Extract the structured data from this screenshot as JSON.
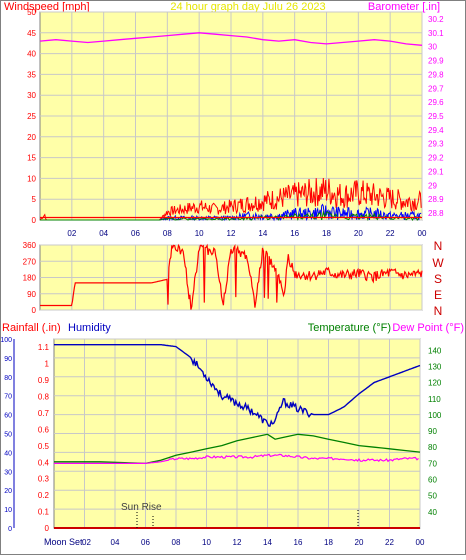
{
  "header": {
    "title": "24 hour graph day   Julu 26 2023",
    "left_label": "Windspeed [mph]",
    "right_label": "Barometer [.in]"
  },
  "bottom_header": {
    "rainfall_label": "Rainfall (.in)",
    "humidity_label": "Humidity",
    "temperature_label": "Temperature (°F)",
    "dewpoint_label": "Dew Point (°F)"
  },
  "annotations": {
    "sun_rise": "Sun Rise",
    "moon_set": "Moon Set"
  },
  "compass": [
    "N",
    "W",
    "S",
    "E",
    "N"
  ],
  "colors": {
    "plot_bg": "#ffffa8",
    "grid": "#c8c8c8",
    "wind": "#ff0000",
    "gust": "#0000ff",
    "wind_green": "#008000",
    "barometer": "#ff00ff",
    "humidity": "#0000c0",
    "temperature": "#008000",
    "dewpoint": "#ff00ff",
    "rainfall": "#cc0000",
    "left_axis_text": "#ff0000",
    "title_text": "#e6e600"
  },
  "chart_data": [
    {
      "type": "line",
      "name": "wind-barometer",
      "x_ticks": [
        "02",
        "04",
        "06",
        "08",
        "10",
        "12",
        "14",
        "16",
        "18",
        "20",
        "22",
        "00"
      ],
      "ylim": [
        0,
        50
      ],
      "y_ticks": [
        0,
        5,
        10,
        15,
        20,
        25,
        30,
        35,
        40,
        45,
        50
      ],
      "y2lim": [
        28.75,
        30.25
      ],
      "y2_ticks": [
        "28.8",
        "28.9",
        "29",
        "29.1",
        "29.2",
        "29.3",
        "29.4",
        "29.5",
        "29.6",
        "29.7",
        "29.8",
        "29.9",
        "30",
        "30.1",
        "30.2"
      ],
      "barometer": [
        [
          0,
          30.04
        ],
        [
          1,
          30.05
        ],
        [
          2,
          30.04
        ],
        [
          3,
          30.03
        ],
        [
          4,
          30.04
        ],
        [
          5,
          30.05
        ],
        [
          6,
          30.06
        ],
        [
          7,
          30.07
        ],
        [
          8,
          30.08
        ],
        [
          9,
          30.09
        ],
        [
          10,
          30.1
        ],
        [
          11,
          30.09
        ],
        [
          12,
          30.08
        ],
        [
          13,
          30.07
        ],
        [
          14,
          30.05
        ],
        [
          15,
          30.04
        ],
        [
          16,
          30.05
        ],
        [
          17,
          30.03
        ],
        [
          18,
          30.02
        ],
        [
          19,
          30.03
        ],
        [
          20,
          30.04
        ],
        [
          21,
          30.05
        ],
        [
          22,
          30.04
        ],
        [
          23,
          30.02
        ],
        [
          24,
          30.01
        ]
      ],
      "wind_max": [
        [
          0,
          0
        ],
        [
          0.3,
          2
        ],
        [
          0.4,
          0
        ],
        [
          7.5,
          0
        ],
        [
          8,
          3
        ],
        [
          9,
          4
        ],
        [
          10,
          5
        ],
        [
          11,
          4
        ],
        [
          12,
          5
        ],
        [
          13,
          6
        ],
        [
          14,
          7
        ],
        [
          15,
          8
        ],
        [
          16,
          9
        ],
        [
          17,
          10
        ],
        [
          18,
          11
        ],
        [
          19,
          9
        ],
        [
          20,
          10
        ],
        [
          21,
          9
        ],
        [
          22,
          8
        ],
        [
          23,
          7
        ],
        [
          24,
          7
        ]
      ],
      "gust_max": [
        [
          0,
          0
        ],
        [
          7.5,
          0
        ],
        [
          8,
          1
        ],
        [
          9,
          1
        ],
        [
          10,
          1
        ],
        [
          11,
          1
        ],
        [
          12,
          1
        ],
        [
          13,
          2
        ],
        [
          14,
          2
        ],
        [
          15,
          2
        ],
        [
          16,
          3
        ],
        [
          17,
          3
        ],
        [
          18,
          4
        ],
        [
          19,
          3
        ],
        [
          20,
          3
        ],
        [
          21,
          3
        ],
        [
          22,
          2
        ],
        [
          23,
          2
        ],
        [
          24,
          2
        ]
      ]
    },
    {
      "type": "line",
      "name": "wind-direction",
      "ylim": [
        0,
        360
      ],
      "y_ticks": [
        0,
        90,
        180,
        270,
        360
      ],
      "direction": [
        [
          0,
          25
        ],
        [
          2,
          25
        ],
        [
          2.2,
          150
        ],
        [
          7,
          150
        ],
        [
          7.5,
          160
        ],
        [
          8,
          170
        ],
        [
          8.3,
          360
        ],
        [
          9,
          320
        ],
        [
          9.5,
          10
        ],
        [
          10,
          340
        ],
        [
          11,
          330
        ],
        [
          11.5,
          20
        ],
        [
          12,
          340
        ],
        [
          13,
          300
        ],
        [
          13.5,
          40
        ],
        [
          14,
          330
        ],
        [
          15,
          200
        ],
        [
          15.3,
          60
        ],
        [
          15.6,
          300
        ],
        [
          16,
          200
        ],
        [
          17,
          190
        ],
        [
          18,
          210
        ],
        [
          19,
          190
        ],
        [
          20,
          200
        ],
        [
          21,
          185
        ],
        [
          22,
          205
        ],
        [
          23,
          190
        ],
        [
          24,
          200
        ]
      ]
    },
    {
      "type": "line",
      "name": "humidity-temperature",
      "ylim": [
        0,
        100
      ],
      "y_ticks": [
        0,
        10,
        20,
        30,
        40,
        50,
        60,
        70,
        80,
        90,
        100
      ],
      "rain_ylim": [
        0,
        1.15
      ],
      "rain_ticks": [
        "0",
        "0.1",
        "0.2",
        "0.3",
        "0.4",
        "0.5",
        "0.6",
        "0.7",
        "0.8",
        "0.9",
        "1",
        "1.1"
      ],
      "temp_ylim": [
        30,
        147
      ],
      "temp_ticks": [
        40,
        50,
        60,
        70,
        80,
        90,
        100,
        110,
        120,
        130,
        140
      ],
      "humidity": [
        [
          0,
          97
        ],
        [
          4,
          97
        ],
        [
          7,
          97
        ],
        [
          8,
          96
        ],
        [
          9,
          90
        ],
        [
          10,
          80
        ],
        [
          11,
          70
        ],
        [
          12,
          66
        ],
        [
          13,
          62
        ],
        [
          14,
          55
        ],
        [
          14.5,
          56
        ],
        [
          15,
          67
        ],
        [
          16,
          63
        ],
        [
          17,
          60
        ],
        [
          18,
          60
        ],
        [
          19,
          64
        ],
        [
          20,
          71
        ],
        [
          21,
          77
        ],
        [
          22,
          80
        ],
        [
          23,
          83
        ],
        [
          24,
          86
        ]
      ],
      "temperature": [
        [
          0,
          71
        ],
        [
          3,
          71
        ],
        [
          6,
          70
        ],
        [
          7,
          72
        ],
        [
          8,
          75
        ],
        [
          9,
          77
        ],
        [
          10,
          79
        ],
        [
          11,
          81
        ],
        [
          12,
          84
        ],
        [
          13,
          86
        ],
        [
          14,
          88
        ],
        [
          14.5,
          85
        ],
        [
          15,
          86
        ],
        [
          16,
          88
        ],
        [
          17,
          87
        ],
        [
          18,
          85
        ],
        [
          19,
          83
        ],
        [
          20,
          81
        ],
        [
          21,
          80
        ],
        [
          22,
          79
        ],
        [
          23,
          78
        ],
        [
          24,
          77
        ]
      ],
      "dewpoint": [
        [
          0,
          70
        ],
        [
          3,
          70
        ],
        [
          6,
          70
        ],
        [
          7,
          71
        ],
        [
          8,
          73
        ],
        [
          9,
          73
        ],
        [
          10,
          74
        ],
        [
          11,
          74
        ],
        [
          12,
          74
        ],
        [
          13,
          74
        ],
        [
          14,
          75
        ],
        [
          15,
          75
        ],
        [
          16,
          74
        ],
        [
          17,
          73
        ],
        [
          18,
          73
        ],
        [
          19,
          73
        ],
        [
          20,
          72
        ],
        [
          21,
          72
        ],
        [
          22,
          72
        ],
        [
          23,
          73
        ],
        [
          24,
          73
        ]
      ],
      "rainfall": [
        [
          0,
          0
        ],
        [
          24,
          0
        ]
      ]
    }
  ]
}
